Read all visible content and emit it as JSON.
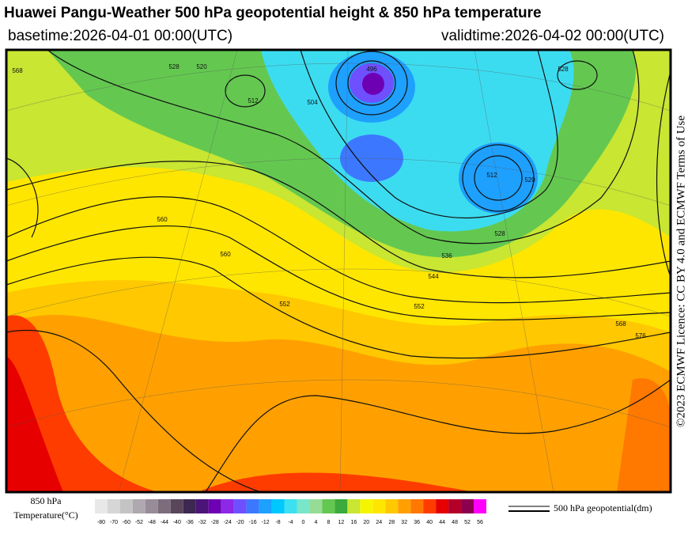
{
  "header": {
    "title": "Huawei Pangu-Weather 500 hPa geopotential height & 850 hPa temperature",
    "basetime": "basetime:2026-04-01 00:00(UTC)",
    "validtime": "validtime:2026-04-02 00:00(UTC)"
  },
  "credit": "©2023 ECMWF Licence: CC BY 4.0 and ECMWF Terms of Use",
  "legend": {
    "temperature_title": [
      "850 hPa",
      "Temperature(°C)"
    ],
    "colorbar": {
      "labels": [
        -80,
        -70,
        -60,
        -52,
        -48,
        -44,
        -40,
        -36,
        -32,
        -28,
        -24,
        -20,
        -16,
        -12,
        -8,
        -4,
        0,
        4,
        8,
        12,
        16,
        20,
        24,
        28,
        32,
        36,
        40,
        44,
        48,
        52,
        56
      ],
      "colors": [
        "#e8e8e8",
        "#d6d6d6",
        "#c4c4c4",
        "#b0a8b0",
        "#988c98",
        "#7c6c7c",
        "#5a465a",
        "#3c2850",
        "#4b1478",
        "#6e00b4",
        "#8c28e6",
        "#6e50ff",
        "#3c78ff",
        "#1ea0ff",
        "#00c8ff",
        "#3ce0f0",
        "#78e6c8",
        "#96dc96",
        "#64c850",
        "#3caa3c",
        "#c8e632",
        "#f5f500",
        "#ffe600",
        "#ffc800",
        "#ffa000",
        "#ff7800",
        "#ff3c00",
        "#e60000",
        "#b40028",
        "#8c0050",
        "#ff00ff"
      ]
    },
    "contour_label": "500 hPa geopotential(dm)"
  },
  "map": {
    "contour_labels": [
      "568",
      "528",
      "520",
      "512",
      "504",
      "496",
      "512",
      "520",
      "528",
      "552",
      "544",
      "536",
      "560",
      "568",
      "576",
      "560",
      "552",
      "528"
    ]
  }
}
